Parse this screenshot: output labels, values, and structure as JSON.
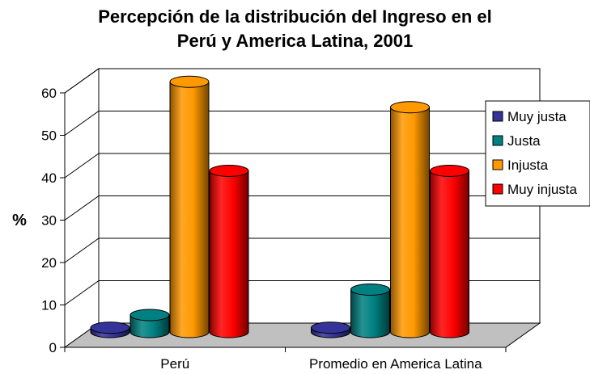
{
  "chart_data": {
    "type": "bar",
    "style": "3d-cylinder",
    "title": "Percepción de la distribución del Ingreso en el Perú y America Latina, 2001",
    "title_lines": [
      "Percepción de la distribución del Ingreso en el",
      "Perú y America Latina, 2001"
    ],
    "xlabel": "",
    "ylabel": "%",
    "ylim": [
      0,
      60
    ],
    "yticks": [
      0,
      10,
      20,
      30,
      40,
      50,
      60
    ],
    "grid": true,
    "legend_position": "right",
    "categories": [
      "Perú",
      "Promedio en America Latina"
    ],
    "series": [
      {
        "name": "Muy justa",
        "values": [
          1,
          1
        ],
        "color": "#333399"
      },
      {
        "name": "Justa",
        "values": [
          4,
          10
        ],
        "color": "#008080"
      },
      {
        "name": "Injusta",
        "values": [
          59,
          53
        ],
        "color": "#FF9900"
      },
      {
        "name": "Muy injusta",
        "values": [
          38,
          38
        ],
        "color": "#FF0000"
      }
    ]
  }
}
